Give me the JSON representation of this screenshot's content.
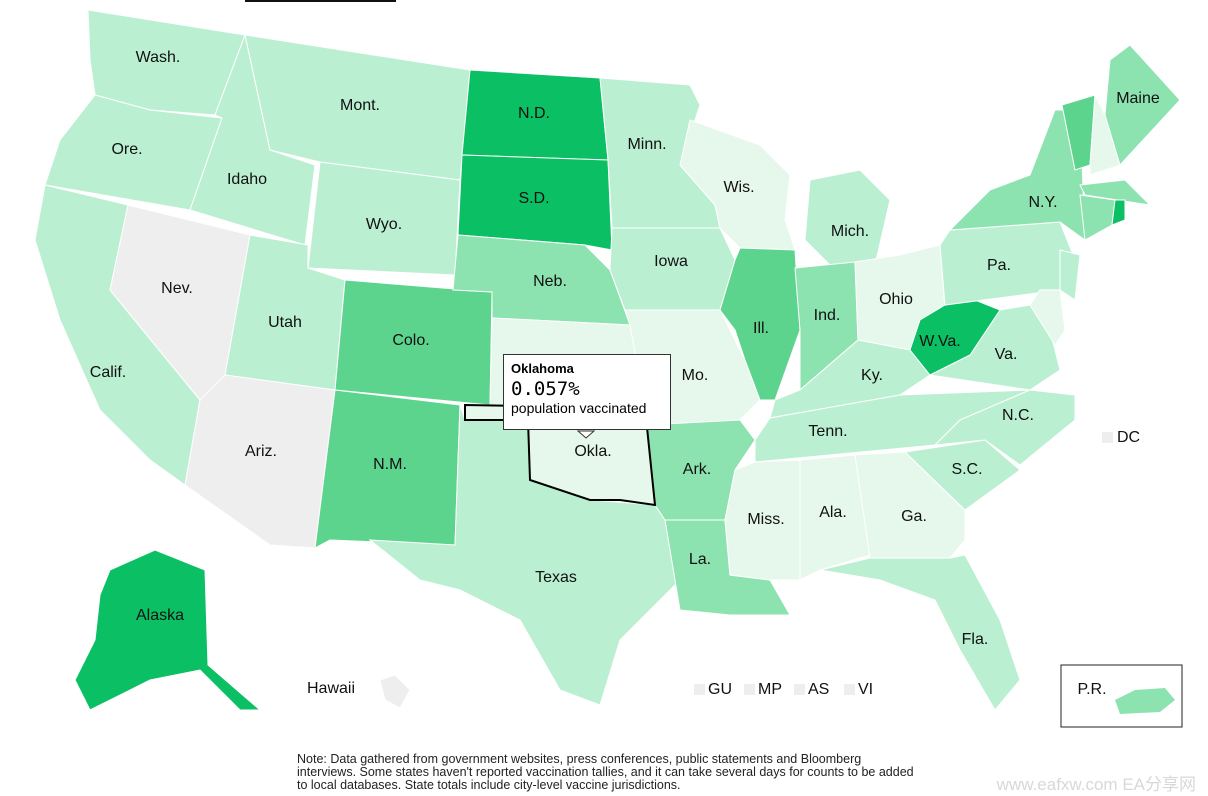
{
  "map": {
    "states": [
      {
        "label": "Wash.",
        "color": "#bbefd2"
      },
      {
        "label": "Ore.",
        "color": "#bbefd2"
      },
      {
        "label": "Calif.",
        "color": "#bbefd2"
      },
      {
        "label": "Nev.",
        "color": "#eeeeee"
      },
      {
        "label": "Idaho",
        "color": "#bbefd2"
      },
      {
        "label": "Mont.",
        "color": "#bbefd2"
      },
      {
        "label": "Wyo.",
        "color": "#bbefd2"
      },
      {
        "label": "Utah",
        "color": "#bbefd2"
      },
      {
        "label": "Ariz.",
        "color": "#eeeeee"
      },
      {
        "label": "Colo.",
        "color": "#5dd48e"
      },
      {
        "label": "N.M.",
        "color": "#5dd48e"
      },
      {
        "label": "N.D.",
        "color": "#0bc064"
      },
      {
        "label": "S.D.",
        "color": "#0bc064"
      },
      {
        "label": "Neb.",
        "color": "#8de3b0"
      },
      {
        "label": null,
        "color": "#e6f7ec"
      },
      {
        "label": "Texas",
        "color": "#bbefd2"
      },
      {
        "label": "Minn.",
        "color": "#bbefd2"
      },
      {
        "label": "Iowa",
        "color": "#bbefd2"
      },
      {
        "label": "Mo.",
        "color": "#e6f7ec"
      },
      {
        "label": "Ark.",
        "color": "#8de3b0"
      },
      {
        "label": "La.",
        "color": "#8de3b0"
      },
      {
        "label": "Wis.",
        "color": "#e6f7ec"
      },
      {
        "label": "Ill.",
        "color": "#5dd48e"
      },
      {
        "label": "Mich.",
        "color": "#bbefd2"
      },
      {
        "label": "Ind.",
        "color": "#8de3b0"
      },
      {
        "label": "Ohio",
        "color": "#e6f7ec"
      },
      {
        "label": "Ky.",
        "color": "#bbefd2"
      },
      {
        "label": "Tenn.",
        "color": "#bbefd2"
      },
      {
        "label": "Miss.",
        "color": "#e6f7ec"
      },
      {
        "label": "Ala.",
        "color": "#e6f7ec"
      },
      {
        "label": "Ga.",
        "color": "#e6f7ec"
      },
      {
        "label": "Fla.",
        "color": "#bbefd2"
      },
      {
        "label": "S.C.",
        "color": "#bbefd2"
      },
      {
        "label": "N.C.",
        "color": "#bbefd2"
      },
      {
        "label": "Va.",
        "color": "#bbefd2"
      },
      {
        "label": "W.Va.",
        "color": "#0bc064"
      },
      {
        "label": "Pa.",
        "color": "#bbefd2"
      },
      {
        "label": "N.Y.",
        "color": "#8de3b0"
      },
      {
        "label": null,
        "color": "#5dd48e"
      },
      {
        "label": null,
        "color": "#e6f7ec"
      },
      {
        "label": "Maine",
        "color": "#8de3b0"
      },
      {
        "label": null,
        "color": "#8de3b0"
      },
      {
        "label": null,
        "color": "#8de3b0"
      },
      {
        "label": null,
        "color": "#0bc064"
      },
      {
        "label": null,
        "color": "#bbefd2"
      },
      {
        "label": null,
        "color": "#e6f7ec"
      },
      {
        "label": "Alaska",
        "color": "#0bc064"
      },
      {
        "label": "Hawaii",
        "color": "#eeeeee"
      },
      {
        "label": "Okla.",
        "color": "#e6f7ec"
      }
    ],
    "pr": {
      "label": "P.R.",
      "color": "#8de3b0"
    },
    "territories": [
      "GU",
      "MP",
      "AS",
      "VI"
    ],
    "dc": "DC",
    "tooltip": {
      "title": "Oklahoma",
      "value": "0.057%",
      "caption": "population vaccinated"
    },
    "note": "Note: Data gathered from government websites, press conferences, public statements and Bloomberg interviews. Some states haven't reported vaccination tallies, and it can take several days for counts to be added to local databases. State totals include city-level vaccine jurisdictions.",
    "watermark": "www.eafxw.com  EA分享网"
  }
}
